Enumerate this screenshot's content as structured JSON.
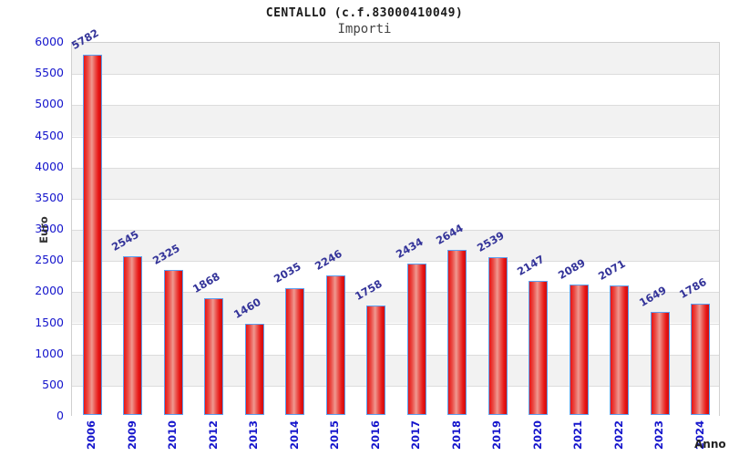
{
  "header": {
    "title": "CENTALLO (c.f.83000410049)",
    "subtitle": "Importi"
  },
  "chart_data": {
    "type": "bar",
    "title": "CENTALLO (c.f.83000410049)",
    "subtitle": "Importi",
    "xlabel": "Anno",
    "ylabel": "Euro",
    "categories": [
      "2006",
      "2009",
      "2010",
      "2012",
      "2013",
      "2014",
      "2015",
      "2016",
      "2017",
      "2018",
      "2019",
      "2020",
      "2021",
      "2022",
      "2023",
      "2024"
    ],
    "values": [
      5782,
      2545,
      2325,
      1868,
      1460,
      2035,
      2246,
      1758,
      2434,
      2644,
      2539,
      2147,
      2089,
      2071,
      1649,
      1786
    ],
    "ylim": [
      0,
      6000
    ],
    "ytick_step": 500,
    "yticks": [
      0,
      500,
      1000,
      1500,
      2000,
      2500,
      3000,
      3500,
      4000,
      4500,
      5000,
      5500,
      6000
    ],
    "grid": "horizontal alternating bands, gray band at top",
    "legend": "none",
    "bar_labels_rotated_deg": -30,
    "x_labels_rotated_deg": -90,
    "colors": {
      "bar_fill_edge": "#e81414",
      "bar_fill_center": "#ef9890",
      "bar_fill_right_dark": "#cc0f0f",
      "bar_border": "#5b9ff0",
      "tick_label": "#1515cc",
      "value_label": "#333399",
      "band_gray": "#f2f2f2",
      "band_white": "#ffffff",
      "gridline": "#dcdcdc",
      "plot_border": "#d0d0d0",
      "axis_title": "#333333",
      "title_text": "#1a1a1a",
      "subtitle_text": "#444444"
    }
  }
}
